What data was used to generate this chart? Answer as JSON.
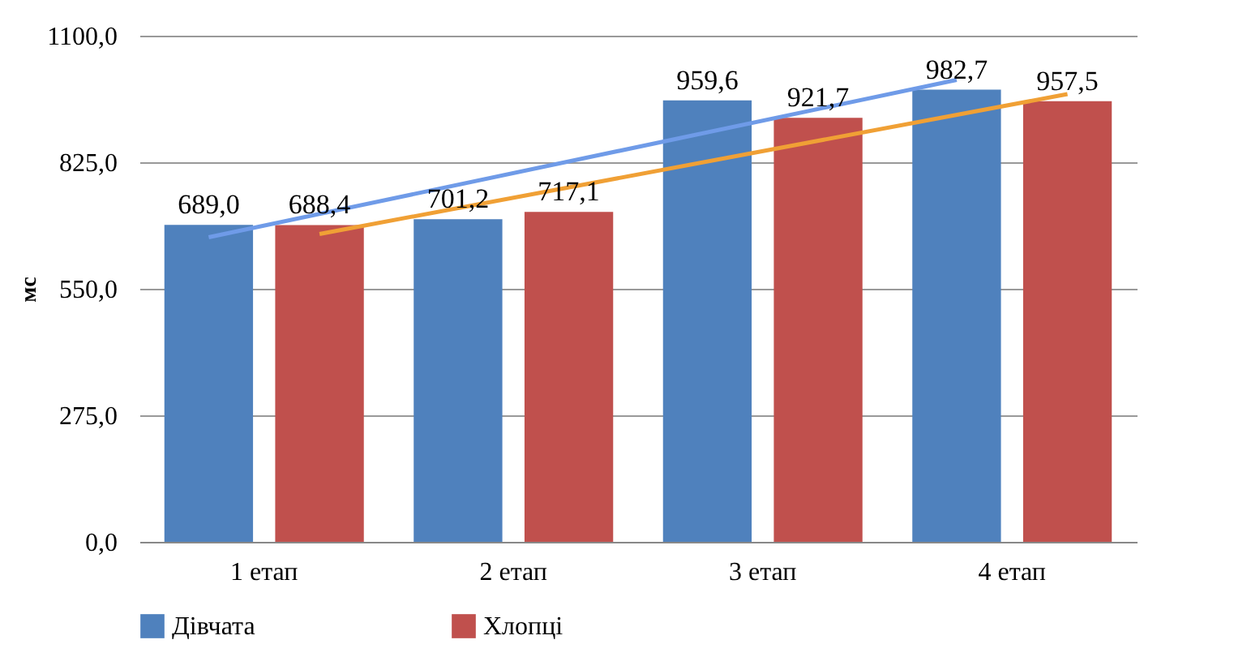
{
  "chart_data": {
    "type": "bar",
    "ylabel": "мс",
    "categories": [
      "1 етап",
      "2 етап",
      "3 етап",
      "4 етап"
    ],
    "series": [
      {
        "name": "Дівчата",
        "color": "#4f81bd",
        "values": [
          689.0,
          701.2,
          959.6,
          982.7
        ],
        "value_labels": [
          "689,0",
          "701,2",
          "959,6",
          "982,7"
        ]
      },
      {
        "name": "Хлопці",
        "color": "#c0504d",
        "values": [
          688.4,
          717.1,
          921.7,
          957.5
        ],
        "value_labels": [
          "688,4",
          "717,1",
          "921,7",
          "957,5"
        ]
      },
      {
        "type": "line",
        "color": "#6f9be8",
        "x": [
          "1 етап",
          "4 етап"
        ],
        "values": [
          662,
          1004
        ]
      },
      {
        "type": "line",
        "color": "#f0a035",
        "x": [
          "1 етап",
          "4 етап"
        ],
        "values": [
          669,
          973
        ]
      }
    ],
    "ylim": [
      0,
      1100
    ],
    "yticks": [
      {
        "value": 0,
        "label": "0,0"
      },
      {
        "value": 275,
        "label": "275,0"
      },
      {
        "value": 550,
        "label": "550,0"
      },
      {
        "value": 825,
        "label": "825,0"
      },
      {
        "value": 1100,
        "label": "1100,0"
      }
    ],
    "grid": "y",
    "legend": "bottom"
  }
}
